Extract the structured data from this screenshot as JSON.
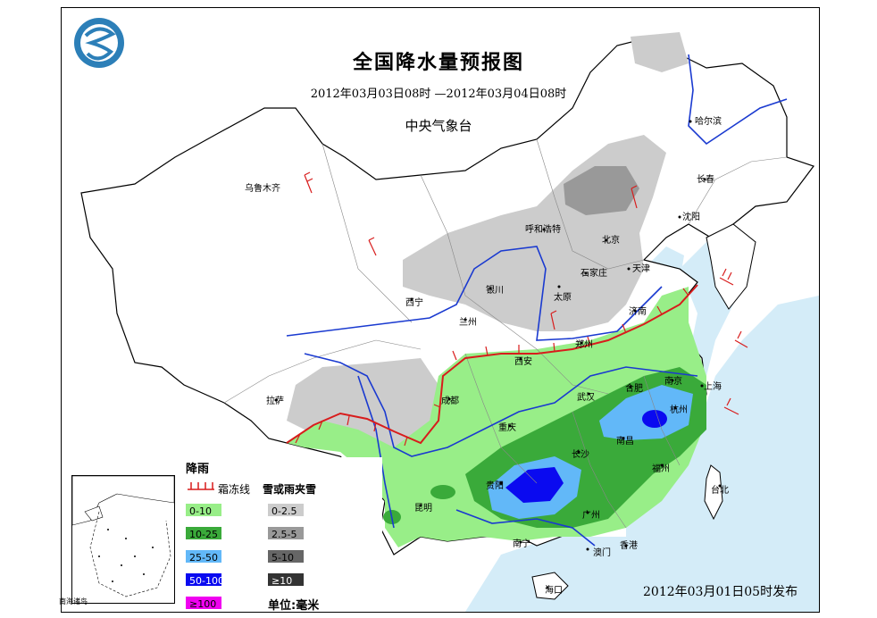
{
  "map": {
    "title": "全国降水量预报图",
    "period": "2012年03月03日08时 —2012年03月04日08时",
    "agency": "中央气象台",
    "issued": "2012年03月01日05时发布",
    "logo_icon": "cma-logo-icon"
  },
  "cities": [
    {
      "id": "wulumuqi",
      "name": "乌鲁木齐"
    },
    {
      "id": "haerbin",
      "name": "哈尔滨"
    },
    {
      "id": "changchun",
      "name": "长春"
    },
    {
      "id": "shenyang",
      "name": "沈阳"
    },
    {
      "id": "huhehaote",
      "name": "呼和浩特"
    },
    {
      "id": "beijing",
      "name": "北京"
    },
    {
      "id": "tianjin",
      "name": "天津"
    },
    {
      "id": "shijiazhuang",
      "name": "石家庄"
    },
    {
      "id": "yinchuan",
      "name": "银川"
    },
    {
      "id": "taiyuan",
      "name": "太原"
    },
    {
      "id": "xining",
      "name": "西宁"
    },
    {
      "id": "lanzhou",
      "name": "兰州"
    },
    {
      "id": "jinan",
      "name": "济南"
    },
    {
      "id": "zhengzhou",
      "name": "郑州"
    },
    {
      "id": "xian",
      "name": "西安"
    },
    {
      "id": "hefei",
      "name": "合肥"
    },
    {
      "id": "nanjing",
      "name": "南京"
    },
    {
      "id": "shanghai",
      "name": "上海"
    },
    {
      "id": "wuhan",
      "name": "武汉"
    },
    {
      "id": "hangzhou",
      "name": "杭州"
    },
    {
      "id": "lasa",
      "name": "拉萨"
    },
    {
      "id": "chengdu",
      "name": "成都"
    },
    {
      "id": "chongqing",
      "name": "重庆"
    },
    {
      "id": "changsha",
      "name": "长沙"
    },
    {
      "id": "nanchang",
      "name": "南昌"
    },
    {
      "id": "guiyang",
      "name": "贵阳"
    },
    {
      "id": "fuzhou",
      "name": "福州"
    },
    {
      "id": "taibei",
      "name": "台北"
    },
    {
      "id": "kunming",
      "name": "昆明"
    },
    {
      "id": "guangzhou",
      "name": "广州"
    },
    {
      "id": "nanning",
      "name": "南宁"
    },
    {
      "id": "aomen",
      "name": "澳门"
    },
    {
      "id": "xianggang",
      "name": "香港"
    },
    {
      "id": "haikou",
      "name": "海口"
    }
  ],
  "legend": {
    "rain_title": "降雨",
    "freeze_line_label": "霜冻线",
    "snow_title": "雪或雨夹雪",
    "unit": "单位:毫米",
    "rain": [
      {
        "label": "0-10",
        "color": "#98ee88"
      },
      {
        "label": "10-25",
        "color": "#3aaa3a"
      },
      {
        "label": "25-50",
        "color": "#62b8f8"
      },
      {
        "label": "50-100",
        "color": "#0a0af0"
      },
      {
        "label": "≥100",
        "color": "#f000f0"
      }
    ],
    "snow": [
      {
        "label": "0-2.5",
        "color": "#cccccc"
      },
      {
        "label": "2.5-5",
        "color": "#999999"
      },
      {
        "label": "5-10",
        "color": "#666666"
      },
      {
        "label": "≥10",
        "color": "#333333"
      }
    ]
  },
  "inset": {
    "label": "南海诸岛"
  },
  "colors": {
    "sea": "#d4ecf8",
    "land": "#ffffff",
    "border": "#000000",
    "river": "#1a3ad0",
    "freeze_line": "#d81c1c"
  }
}
